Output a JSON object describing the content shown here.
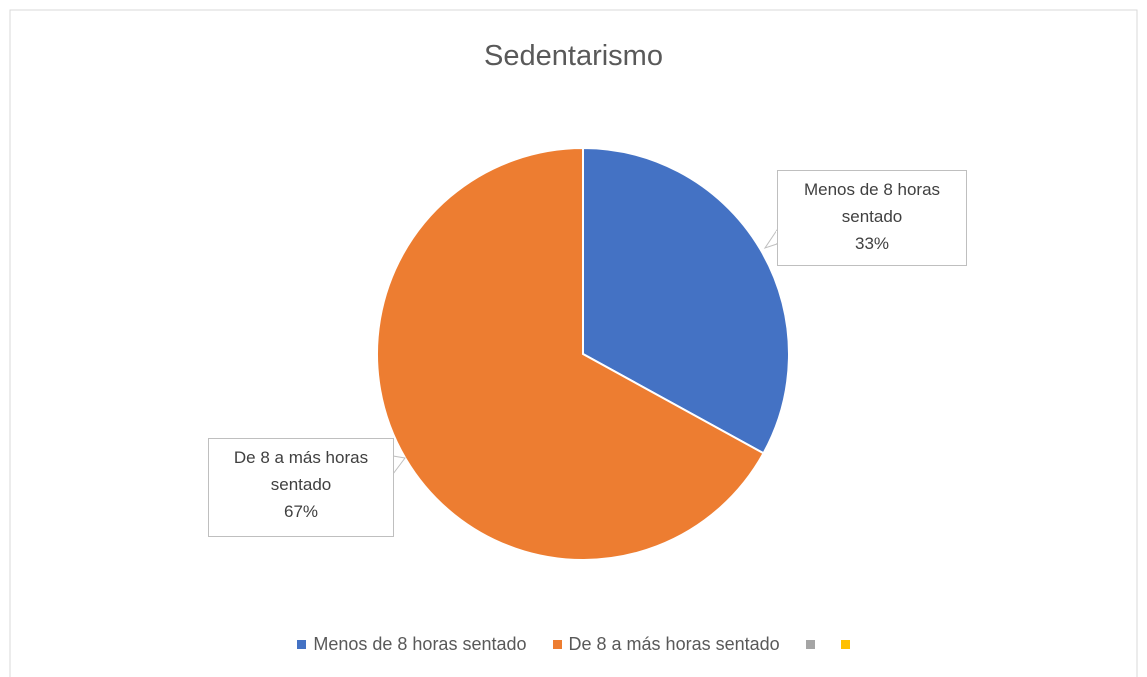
{
  "chart_data": {
    "type": "pie",
    "title": "Sedentarismo",
    "categories": [
      "Menos de 8 horas sentado",
      "De 8 a más horas sentado",
      null,
      null
    ],
    "values": [
      33,
      67,
      null,
      null
    ],
    "value_labels": [
      "33%",
      "67%",
      null,
      null
    ],
    "colors": [
      "#4472c4",
      "#ed7d31",
      "#a5a5a5",
      "#ffc000"
    ],
    "legend": "bottom"
  }
}
